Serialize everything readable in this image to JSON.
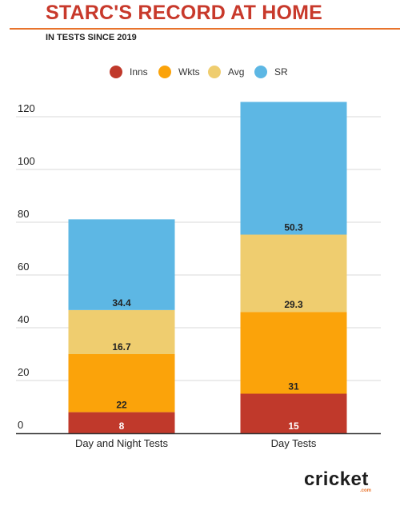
{
  "header": {
    "title": "STARC'S RECORD AT HOME",
    "subtitle": "IN TESTS SINCE 2019"
  },
  "brand": {
    "word": "cricket",
    "sub": ".com"
  },
  "chart_data": {
    "type": "bar",
    "stacked": true,
    "categories": [
      "Day and Night Tests",
      "Day Tests"
    ],
    "series": [
      {
        "name": "Inns",
        "values": [
          8,
          15
        ],
        "color": "#c0392b",
        "label_color": "#ffffff"
      },
      {
        "name": "Wkts",
        "values": [
          22,
          31
        ],
        "color": "#fba30a",
        "label_color": "#222222"
      },
      {
        "name": "Avg",
        "values": [
          16.7,
          29.3
        ],
        "color": "#efcd6f",
        "label_color": "#222222"
      },
      {
        "name": "SR",
        "values": [
          34.4,
          50.3
        ],
        "color": "#5db7e4",
        "label_color": "#222222"
      }
    ],
    "yticks": [
      0,
      20,
      40,
      60,
      80,
      100,
      120
    ],
    "ylim": [
      0,
      130
    ],
    "grid": true,
    "legend": "top-center"
  }
}
